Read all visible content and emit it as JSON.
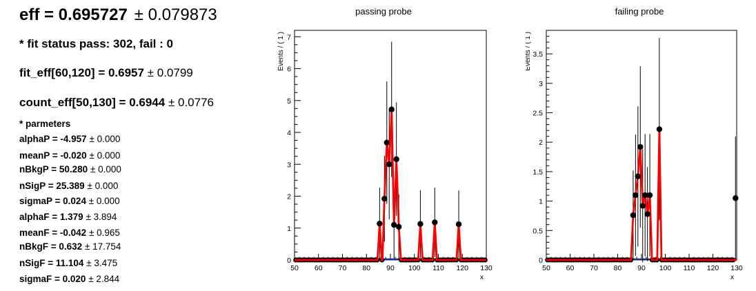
{
  "summary": {
    "eff_label": "eff = 0.695727",
    "eff_error": "± 0.079873",
    "fit_status": "* fit status pass: 302, fail : 0",
    "fit_eff_label": "fit_eff[60,120] = 0.6957",
    "fit_eff_error": "± 0.0799",
    "count_eff_label": "count_eff[50,130] = 0.6944",
    "count_eff_error": "± 0.0776",
    "params_header": "* parmeters",
    "params": [
      {
        "label": "alphaP = -4.957",
        "error": "± 0.000"
      },
      {
        "label": "meanP = -0.020",
        "error": "± 0.000"
      },
      {
        "label": "nBkgP = 50.280",
        "error": "± 0.000"
      },
      {
        "label": "nSigP = 25.389",
        "error": "± 0.000"
      },
      {
        "label": "sigmaP = 0.024",
        "error": "± 0.000"
      },
      {
        "label": "alphaF = 1.379",
        "error": "± 3.894"
      },
      {
        "label": "meanF = -0.042",
        "error": "± 0.965"
      },
      {
        "label": "nBkgF = 0.632",
        "error": "± 17.754"
      },
      {
        "label": "nSigF = 11.104",
        "error": "± 3.475"
      },
      {
        "label": "sigmaF = 0.020",
        "error": "± 2.844"
      }
    ]
  },
  "chart_data": [
    {
      "type": "scatter",
      "title": "passing probe",
      "xlabel": "x",
      "ylabel": "Events / ( 1 )",
      "xlim": [
        50,
        130
      ],
      "ylim": [
        0,
        7.2
      ],
      "xticks": [
        50,
        60,
        70,
        80,
        90,
        100,
        110,
        120,
        130
      ],
      "yticks": [
        0,
        1,
        2,
        3,
        4,
        5,
        6,
        7
      ],
      "points": [
        {
          "x": 85.5,
          "y": 1.14,
          "err": 1.13
        },
        {
          "x": 87.5,
          "y": 1.92,
          "err": 1.35
        },
        {
          "x": 88.5,
          "y": 3.68,
          "err": 1.92
        },
        {
          "x": 89.5,
          "y": 3.0,
          "err": 1.73
        },
        {
          "x": 90.5,
          "y": 4.72,
          "err": 2.12
        },
        {
          "x": 91.5,
          "y": 1.1,
          "err": 1.05
        },
        {
          "x": 92.5,
          "y": 3.16,
          "err": 1.78
        },
        {
          "x": 93.5,
          "y": 1.04,
          "err": 1.02
        },
        {
          "x": 102.5,
          "y": 1.13,
          "err": 1.06
        },
        {
          "x": 108.5,
          "y": 1.18,
          "err": 1.09
        },
        {
          "x": 118.5,
          "y": 1.12,
          "err": 1.06
        }
      ],
      "fit_curve": [
        [
          50,
          0
        ],
        [
          84.6,
          0
        ],
        [
          85.5,
          1.14
        ],
        [
          86.4,
          0
        ],
        [
          86.7,
          0
        ],
        [
          87.5,
          1.92
        ],
        [
          88.5,
          3.68
        ],
        [
          89.5,
          3.0
        ],
        [
          90.5,
          4.72
        ],
        [
          91.5,
          1.1
        ],
        [
          92.5,
          3.16
        ],
        [
          93.5,
          1.04
        ],
        [
          94.4,
          0
        ],
        [
          101.6,
          0
        ],
        [
          102.5,
          1.13
        ],
        [
          103.4,
          0
        ],
        [
          107.6,
          0
        ],
        [
          108.5,
          1.18
        ],
        [
          109.4,
          0
        ],
        [
          117.6,
          0
        ],
        [
          118.5,
          1.12
        ],
        [
          119.4,
          0
        ],
        [
          130,
          0
        ]
      ]
    },
    {
      "type": "scatter",
      "title": "failing probe",
      "xlabel": "x",
      "ylabel": "Events / ( 1 )",
      "xlim": [
        50,
        130
      ],
      "ylim": [
        0,
        3.9
      ],
      "xticks": [
        50,
        60,
        70,
        80,
        90,
        100,
        110,
        120,
        130
      ],
      "yticks": [
        0,
        0.5,
        1,
        1.5,
        2,
        2.5,
        3,
        3.5
      ],
      "ytick_labels": [
        "0",
        "0.5",
        "1",
        "1.5",
        "2",
        "2.5",
        "3",
        "3.5"
      ],
      "points": [
        {
          "x": 86.5,
          "y": 0.76,
          "err": 0.76
        },
        {
          "x": 87.5,
          "y": 1.1,
          "err": 1.03
        },
        {
          "x": 88.5,
          "y": 1.42,
          "err": 1.19
        },
        {
          "x": 89.5,
          "y": 1.92,
          "err": 1.37
        },
        {
          "x": 90.5,
          "y": 0.92,
          "err": 0.96
        },
        {
          "x": 91.5,
          "y": 1.1,
          "err": 1.04
        },
        {
          "x": 92.5,
          "y": 0.78,
          "err": 0.8
        },
        {
          "x": 93.5,
          "y": 1.1,
          "err": 1.04
        },
        {
          "x": 97.5,
          "y": 2.22,
          "err": 1.55
        },
        {
          "x": 129.5,
          "y": 1.05,
          "err": 1.05
        }
      ],
      "fit_curve": [
        [
          50,
          0
        ],
        [
          85.6,
          0
        ],
        [
          86.5,
          0.76
        ],
        [
          87.5,
          1.1
        ],
        [
          88.5,
          1.42
        ],
        [
          89.5,
          1.92
        ],
        [
          90.5,
          0.92
        ],
        [
          91.5,
          1.1
        ],
        [
          92.5,
          0.78
        ],
        [
          93.5,
          1.1
        ],
        [
          94.4,
          0
        ],
        [
          96.6,
          0
        ],
        [
          97.5,
          2.22
        ],
        [
          98.4,
          0
        ],
        [
          130,
          0
        ]
      ]
    }
  ]
}
